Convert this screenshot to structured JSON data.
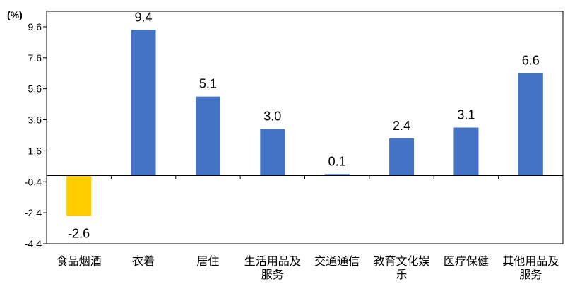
{
  "chart_data": {
    "type": "bar",
    "ylabel": "(%)",
    "ylim": [
      -4.4,
      10.6
    ],
    "yticks": [
      9.6,
      7.6,
      5.6,
      3.6,
      1.6,
      -0.4,
      -2.4,
      -4.4
    ],
    "ytick_labels": [
      "9.6",
      "7.6",
      "5.6",
      "3.6",
      "1.6",
      "-0.4",
      "-2.4",
      "-4.4"
    ],
    "categories": [
      [
        "食品烟酒"
      ],
      [
        "衣着"
      ],
      [
        "居住"
      ],
      [
        "生活用品及",
        "服务"
      ],
      [
        "交通通信"
      ],
      [
        "教育文化娱",
        "乐"
      ],
      [
        "医疗保健"
      ],
      [
        "其他用品及",
        "服务"
      ]
    ],
    "values": [
      -2.6,
      9.4,
      5.1,
      3.0,
      0.1,
      2.4,
      3.1,
      6.6
    ],
    "value_labels": [
      "-2.6",
      "9.4",
      "5.1",
      "3.0",
      "0.1",
      "2.4",
      "3.1",
      "6.6"
    ],
    "bar_colors": [
      "#FFCC00",
      "#4472C4",
      "#4472C4",
      "#4472C4",
      "#4472C4",
      "#4472C4",
      "#4472C4",
      "#4472C4"
    ],
    "grid": false,
    "legend": "none"
  }
}
